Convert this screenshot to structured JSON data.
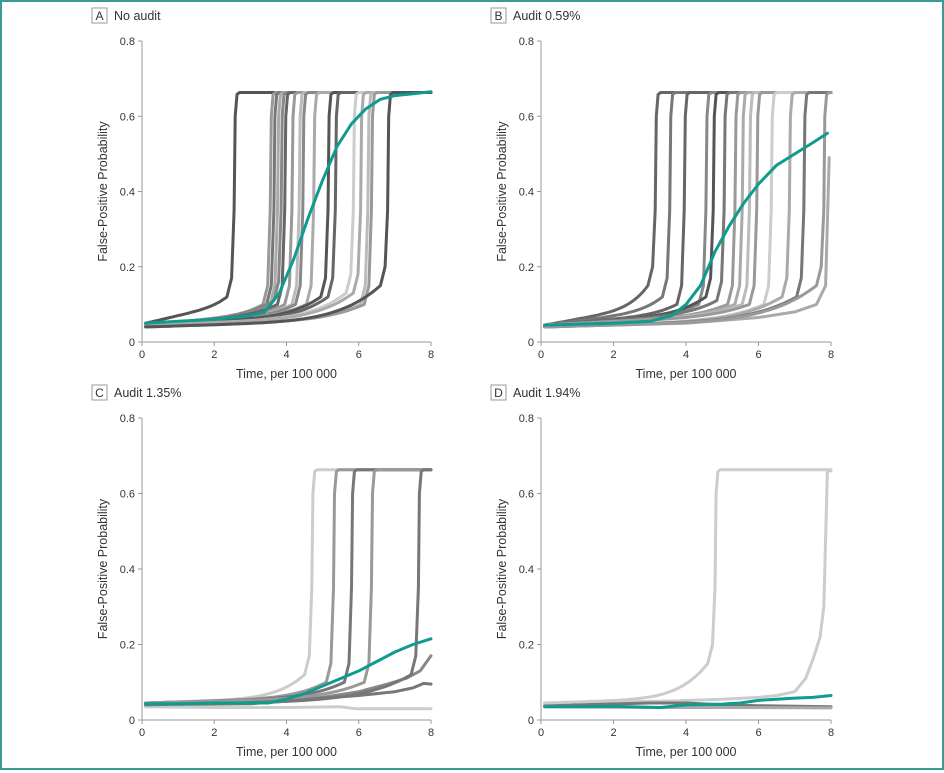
{
  "figure": {
    "border_color": "#3a9a9a",
    "mean_color": "#0f9b8e"
  },
  "chart_data": [
    {
      "panel": "A",
      "title": "No audit",
      "type": "line",
      "xlabel": "Time, per 100 000",
      "ylabel": "False-Positive Probability",
      "xlim": [
        0,
        8
      ],
      "ylim": [
        0,
        0.8
      ],
      "xticks": [
        "0",
        "2",
        "4",
        "6",
        "8"
      ],
      "yticks": [
        "0",
        "0.2",
        "0.4",
        "0.6",
        "0.8"
      ],
      "mean_series": {
        "name": "mean",
        "points": [
          [
            0.1,
            0.05
          ],
          [
            1,
            0.055
          ],
          [
            2,
            0.06
          ],
          [
            3,
            0.07
          ],
          [
            3.4,
            0.08
          ],
          [
            3.8,
            0.13
          ],
          [
            4.2,
            0.22
          ],
          [
            4.6,
            0.33
          ],
          [
            5,
            0.43
          ],
          [
            5.4,
            0.52
          ],
          [
            5.8,
            0.58
          ],
          [
            6.2,
            0.62
          ],
          [
            6.6,
            0.645
          ],
          [
            7,
            0.655
          ],
          [
            7.5,
            0.66
          ],
          [
            8,
            0.665
          ]
        ]
      },
      "runs": [
        {
          "shade": "#555",
          "jump": 2.6,
          "base": 0.05,
          "slope": 0.05,
          "pre": 0.12
        },
        {
          "shade": "#999",
          "jump": 3.6,
          "base": 0.045,
          "slope": 0.03,
          "pre": 0.1
        },
        {
          "shade": "#777",
          "jump": 3.7,
          "base": 0.045,
          "slope": 0.03,
          "pre": 0.1
        },
        {
          "shade": "#aaa",
          "jump": 3.8,
          "base": 0.045,
          "slope": 0.03,
          "pre": 0.1
        },
        {
          "shade": "#888",
          "jump": 3.9,
          "base": 0.045,
          "slope": 0.03,
          "pre": 0.11
        },
        {
          "shade": "#666",
          "jump": 4.0,
          "base": 0.045,
          "slope": 0.03,
          "pre": 0.1
        },
        {
          "shade": "#999",
          "jump": 4.2,
          "base": 0.045,
          "slope": 0.025,
          "pre": 0.1
        },
        {
          "shade": "#bbb",
          "jump": 4.4,
          "base": 0.045,
          "slope": 0.025,
          "pre": 0.1
        },
        {
          "shade": "#888",
          "jump": 4.5,
          "base": 0.045,
          "slope": 0.025,
          "pre": 0.1
        },
        {
          "shade": "#aaa",
          "jump": 4.8,
          "base": 0.045,
          "slope": 0.025,
          "pre": 0.1
        },
        {
          "shade": "#555",
          "jump": 5.2,
          "base": 0.045,
          "slope": 0.025,
          "pre": 0.12
        },
        {
          "shade": "#666",
          "jump": 5.4,
          "base": 0.045,
          "slope": 0.02,
          "pre": 0.12
        },
        {
          "shade": "#ccc",
          "jump": 5.9,
          "base": 0.045,
          "slope": 0.02,
          "pre": 0.13
        },
        {
          "shade": "#aaa",
          "jump": 6.1,
          "base": 0.045,
          "slope": 0.02,
          "pre": 0.13
        },
        {
          "shade": "#bbb",
          "jump": 6.3,
          "base": 0.04,
          "slope": 0.02,
          "pre": 0.1
        },
        {
          "shade": "#999",
          "jump": 6.4,
          "base": 0.04,
          "slope": 0.02,
          "pre": 0.1
        },
        {
          "shade": "#555",
          "jump": 6.85,
          "base": 0.04,
          "slope": 0.02,
          "pre": 0.15
        }
      ]
    },
    {
      "panel": "B",
      "title": "Audit 0.59%",
      "type": "line",
      "xlabel": "Time, per 100 000",
      "ylabel": "False-Positive Probability",
      "xlim": [
        0,
        8
      ],
      "ylim": [
        0,
        0.8
      ],
      "xticks": [
        "0",
        "2",
        "4",
        "6",
        "8"
      ],
      "yticks": [
        "0",
        "0.2",
        "0.4",
        "0.6",
        "0.8"
      ],
      "mean_series": {
        "name": "mean",
        "points": [
          [
            0.1,
            0.045
          ],
          [
            1,
            0.047
          ],
          [
            2,
            0.05
          ],
          [
            3,
            0.055
          ],
          [
            3.6,
            0.07
          ],
          [
            4,
            0.1
          ],
          [
            4.4,
            0.15
          ],
          [
            4.8,
            0.24
          ],
          [
            5.2,
            0.31
          ],
          [
            5.6,
            0.37
          ],
          [
            6,
            0.42
          ],
          [
            6.5,
            0.47
          ],
          [
            7,
            0.5
          ],
          [
            7.5,
            0.53
          ],
          [
            7.9,
            0.555
          ]
        ]
      },
      "runs": [
        {
          "shade": "#666",
          "jump": 3.2,
          "base": 0.045,
          "slope": 0.05,
          "pre": 0.15
        },
        {
          "shade": "#777",
          "jump": 3.6,
          "base": 0.045,
          "slope": 0.04,
          "pre": 0.12
        },
        {
          "shade": "#666",
          "jump": 4.0,
          "base": 0.045,
          "slope": 0.03,
          "pre": 0.1
        },
        {
          "shade": "#888",
          "jump": 4.6,
          "base": 0.045,
          "slope": 0.03,
          "pre": 0.1
        },
        {
          "shade": "#555",
          "jump": 4.8,
          "base": 0.045,
          "slope": 0.03,
          "pre": 0.12
        },
        {
          "shade": "#777",
          "jump": 5.1,
          "base": 0.045,
          "slope": 0.03,
          "pre": 0.11
        },
        {
          "shade": "#999",
          "jump": 5.4,
          "base": 0.045,
          "slope": 0.025,
          "pre": 0.1
        },
        {
          "shade": "#aaa",
          "jump": 5.6,
          "base": 0.045,
          "slope": 0.025,
          "pre": 0.1
        },
        {
          "shade": "#bbb",
          "jump": 5.8,
          "base": 0.045,
          "slope": 0.025,
          "pre": 0.1
        },
        {
          "shade": "#999",
          "jump": 6.0,
          "base": 0.045,
          "slope": 0.025,
          "pre": 0.1
        },
        {
          "shade": "#ccc",
          "jump": 6.4,
          "base": 0.04,
          "slope": 0.02,
          "pre": 0.1
        },
        {
          "shade": "#aaa",
          "jump": 6.9,
          "base": 0.04,
          "slope": 0.02,
          "pre": 0.12
        },
        {
          "shade": "#777",
          "jump": 7.3,
          "base": 0.04,
          "slope": 0.02,
          "pre": 0.12
        },
        {
          "shade": "#999",
          "jump": 7.85,
          "base": 0.04,
          "slope": 0.02,
          "pre": 0.15
        }
      ],
      "partial_runs": [
        {
          "shade": "#aaa",
          "points": [
            [
              0.1,
              0.04
            ],
            [
              4,
              0.05
            ],
            [
              6,
              0.065
            ],
            [
              7,
              0.08
            ],
            [
              7.6,
              0.1
            ],
            [
              7.85,
              0.15
            ],
            [
              7.95,
              0.49
            ]
          ]
        }
      ]
    },
    {
      "panel": "C",
      "title": "Audit 1.35%",
      "type": "line",
      "xlabel": "Time, per 100 000",
      "ylabel": "False-Positive Probability",
      "xlim": [
        0,
        8
      ],
      "ylim": [
        0,
        0.8
      ],
      "xticks": [
        "0",
        "2",
        "4",
        "6",
        "8"
      ],
      "yticks": [
        "0",
        "0.2",
        "0.4",
        "0.6",
        "0.8"
      ],
      "mean_series": {
        "name": "mean",
        "points": [
          [
            0.1,
            0.043
          ],
          [
            1,
            0.043
          ],
          [
            2,
            0.045
          ],
          [
            3,
            0.045
          ],
          [
            3.5,
            0.045
          ],
          [
            4,
            0.055
          ],
          [
            4.5,
            0.07
          ],
          [
            5,
            0.09
          ],
          [
            5.5,
            0.11
          ],
          [
            6,
            0.13
          ],
          [
            6.5,
            0.155
          ],
          [
            7,
            0.18
          ],
          [
            7.5,
            0.2
          ],
          [
            8,
            0.215
          ]
        ]
      },
      "runs": [
        {
          "shade": "#ccc",
          "jump": 4.75,
          "base": 0.045,
          "slope": 0.015,
          "pre": 0.12
        },
        {
          "shade": "#999",
          "jump": 5.35,
          "base": 0.045,
          "slope": 0.015,
          "pre": 0.1
        },
        {
          "shade": "#777",
          "jump": 5.85,
          "base": 0.045,
          "slope": 0.015,
          "pre": 0.1
        },
        {
          "shade": "#999",
          "jump": 6.4,
          "base": 0.045,
          "slope": 0.015,
          "pre": 0.1
        },
        {
          "shade": "#777",
          "jump": 7.7,
          "base": 0.04,
          "slope": 0.015,
          "pre": 0.12
        }
      ],
      "partial_runs": [
        {
          "shade": "#888",
          "points": [
            [
              0.1,
              0.04
            ],
            [
              3,
              0.045
            ],
            [
              4,
              0.05
            ],
            [
              5,
              0.06
            ],
            [
              6,
              0.075
            ],
            [
              6.8,
              0.095
            ],
            [
              7.3,
              0.11
            ],
            [
              7.7,
              0.13
            ],
            [
              8,
              0.17
            ]
          ]
        },
        {
          "shade": "#777",
          "points": [
            [
              0.1,
              0.04
            ],
            [
              3,
              0.043
            ],
            [
              4,
              0.05
            ],
            [
              5,
              0.058
            ],
            [
              6,
              0.065
            ],
            [
              7,
              0.075
            ],
            [
              7.5,
              0.085
            ],
            [
              7.8,
              0.097
            ],
            [
              8,
              0.095
            ]
          ]
        },
        {
          "shade": "#ccc",
          "points": [
            [
              0.1,
              0.035
            ],
            [
              2,
              0.033
            ],
            [
              4,
              0.033
            ],
            [
              5.5,
              0.035
            ],
            [
              5.9,
              0.03
            ],
            [
              8,
              0.03
            ]
          ]
        }
      ]
    },
    {
      "panel": "D",
      "title": "Audit 1.94%",
      "type": "line",
      "xlabel": "Time, per 100 000",
      "ylabel": "False-Positive Probability",
      "xlim": [
        0,
        8
      ],
      "ylim": [
        0,
        0.8
      ],
      "xticks": [
        "0",
        "2",
        "4",
        "6",
        "8"
      ],
      "yticks": [
        "0",
        "0.2",
        "0.4",
        "0.6",
        "0.8"
      ],
      "mean_series": {
        "name": "mean",
        "points": [
          [
            0.1,
            0.035
          ],
          [
            1,
            0.035
          ],
          [
            2,
            0.036
          ],
          [
            3,
            0.034
          ],
          [
            3.3,
            0.033
          ],
          [
            4,
            0.04
          ],
          [
            5,
            0.042
          ],
          [
            5.5,
            0.045
          ],
          [
            6,
            0.052
          ],
          [
            6.5,
            0.055
          ],
          [
            7,
            0.058
          ],
          [
            7.5,
            0.06
          ],
          [
            8,
            0.065
          ]
        ]
      },
      "runs": [
        {
          "shade": "#ccc",
          "jump": 4.85,
          "base": 0.045,
          "slope": 0.015,
          "pre": 0.15
        }
      ],
      "partial_runs": [
        {
          "shade": "#ccc",
          "points": [
            [
              0.1,
              0.045
            ],
            [
              2,
              0.048
            ],
            [
              3.5,
              0.05
            ],
            [
              5,
              0.055
            ],
            [
              6,
              0.06
            ],
            [
              6.5,
              0.065
            ],
            [
              7,
              0.075
            ],
            [
              7.3,
              0.11
            ],
            [
              7.5,
              0.16
            ],
            [
              7.7,
              0.22
            ],
            [
              7.8,
              0.3
            ],
            [
              7.9,
              0.66
            ],
            [
              8,
              0.66
            ]
          ]
        },
        {
          "shade": "#777",
          "points": [
            [
              0.1,
              0.038
            ],
            [
              3,
              0.045
            ],
            [
              4,
              0.045
            ],
            [
              5,
              0.04
            ],
            [
              6,
              0.038
            ],
            [
              8,
              0.035
            ]
          ]
        },
        {
          "shade": "#aaa",
          "points": [
            [
              0.1,
              0.035
            ],
            [
              3,
              0.033
            ],
            [
              5,
              0.033
            ],
            [
              8,
              0.032
            ]
          ]
        }
      ]
    }
  ]
}
